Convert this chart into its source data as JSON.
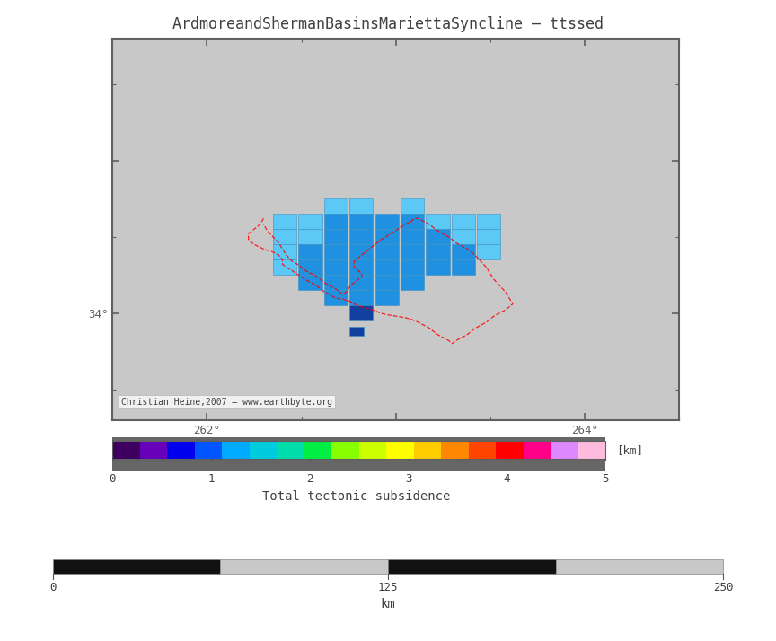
{
  "title": "ArdmoreandShermanBasinsMariettaSyncline – ttssed",
  "map_xlim": [
    261.5,
    264.5
  ],
  "map_ylim": [
    33.3,
    35.8
  ],
  "map_bg_color": "#c8c8c8",
  "axis_color": "#606060",
  "credit_text": "Christian Heine,2007 – www.earthbyte.org",
  "colorbar_label": "Total tectonic subsidence",
  "colorbar_unit": "[km]",
  "scalebar_label": "km",
  "scalebar_ticks": [
    0,
    125,
    250
  ],
  "basin_color_light": "#5bc8f5",
  "basin_color_mid": "#2090e0",
  "basin_color_dark": "#1040a0",
  "basin_edgecolor": "#4090c0",
  "colorbar_colors": [
    "#3d0060",
    "#6600bb",
    "#0000ee",
    "#0055ff",
    "#00aaff",
    "#00ccdd",
    "#00ddaa",
    "#00ee44",
    "#88ff00",
    "#ccff00",
    "#ffff00",
    "#ffcc00",
    "#ff8800",
    "#ff4400",
    "#ff0000",
    "#ff0088",
    "#dd88ff",
    "#ffbbdd"
  ]
}
